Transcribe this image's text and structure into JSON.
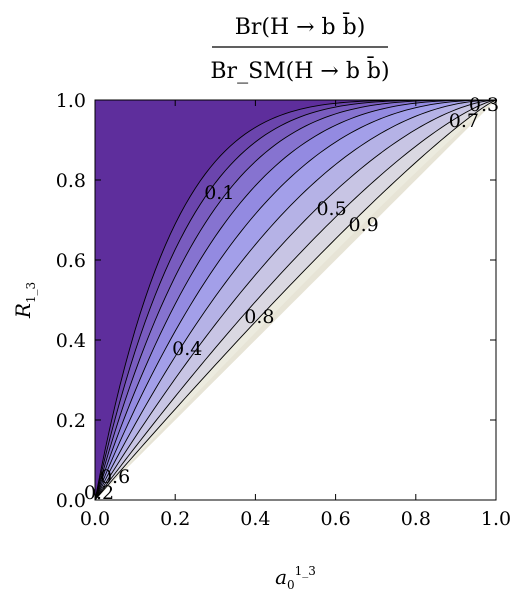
{
  "chart_data": {
    "type": "contour",
    "title": {
      "numerator": "Br(H → b b̄)",
      "denominator": "Br_SM(H → b b̄)"
    },
    "xlabel": "a_0^{1_3}",
    "ylabel": "R_{1_3}",
    "xlim": [
      0,
      1
    ],
    "ylim": [
      0,
      1
    ],
    "x_ticks": [
      "0.0",
      "0.2",
      "0.4",
      "0.6",
      "0.8",
      "1.0"
    ],
    "y_ticks": [
      "0.0",
      "0.2",
      "0.4",
      "0.6",
      "0.8",
      "1.0"
    ],
    "contour_levels": [
      0.1,
      0.2,
      0.3,
      0.4,
      0.5,
      0.6,
      0.7,
      0.8,
      0.9
    ],
    "contour_labels": [
      {
        "text": "0.1",
        "x": 0.31,
        "y": 0.77
      },
      {
        "text": "0.5",
        "x": 0.59,
        "y": 0.73
      },
      {
        "text": "0.9",
        "x": 0.67,
        "y": 0.69
      },
      {
        "text": "0.7",
        "x": 0.92,
        "y": 0.95
      },
      {
        "text": "0.8",
        "x": 0.41,
        "y": 0.46
      },
      {
        "text": "0.4",
        "x": 0.23,
        "y": 0.38
      },
      {
        "text": "0.6",
        "x": 0.05,
        "y": 0.06
      },
      {
        "text": "0.2",
        "x": 0.01,
        "y": 0.02
      },
      {
        "text": "0.3",
        "x": 0.97,
        "y": 0.99
      }
    ],
    "region": "defined for R_{1_3} ≥ a_0^{1_3}; undefined (white) below the diagonal",
    "colormap": {
      "low": "#5e2e9c",
      "mid": "#9a95ea",
      "high": "#ecebdf"
    }
  }
}
